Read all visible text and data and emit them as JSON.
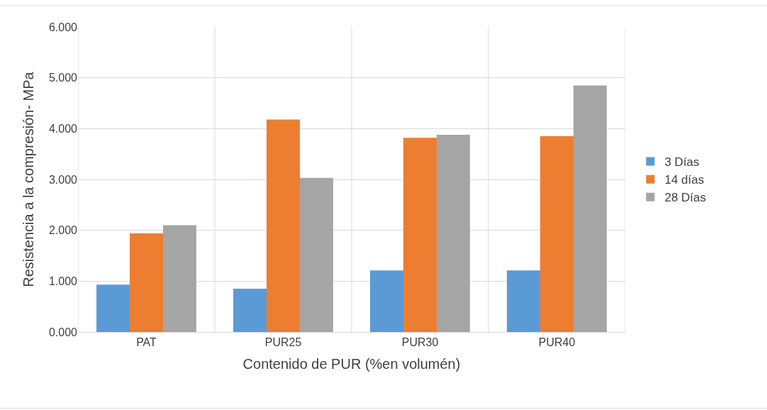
{
  "chart_data": {
    "type": "bar",
    "xlabel": "Contenido de PUR (%en volumén)",
    "ylabel": "Resistencia a la compresión- MPa",
    "categories": [
      "PAT",
      "PUR25",
      "PUR30",
      "PUR40"
    ],
    "series": [
      {
        "name": "3 Días",
        "color": "#5b9bd5",
        "values": [
          0.93,
          0.85,
          1.21,
          1.21
        ]
      },
      {
        "name": "14 días",
        "color": "#ed7d31",
        "values": [
          1.94,
          4.18,
          3.82,
          3.85
        ]
      },
      {
        "name": "28 Días",
        "color": "#a5a5a5",
        "values": [
          2.1,
          3.03,
          3.88,
          4.85
        ]
      }
    ],
    "ylim": [
      0,
      6
    ],
    "yticks": [
      {
        "value": 0,
        "label": "0.000"
      },
      {
        "value": 1,
        "label": "1.000"
      },
      {
        "value": 2,
        "label": "2.000"
      },
      {
        "value": 3,
        "label": "3.000"
      },
      {
        "value": 4,
        "label": "4.000"
      },
      {
        "value": 5,
        "label": "5.000"
      },
      {
        "value": 6,
        "label": "6.000"
      }
    ],
    "grid": true,
    "legend": "right"
  }
}
